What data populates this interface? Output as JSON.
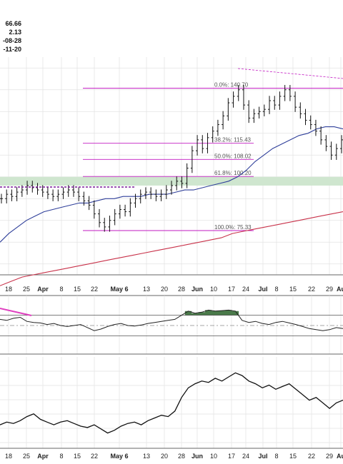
{
  "header": {
    "readouts": [
      "66.66",
      "2.13",
      "-08-28",
      "-11-20"
    ]
  },
  "colors": {
    "price": "#111111",
    "ma_short": "#2f3f9a",
    "ma_long": "#c8324a",
    "fib": "#c21ac2",
    "support_zone": "#cfe6cf",
    "indicator_fill": "#4a7a4a",
    "divergence": "#e040c0",
    "grid": "#e2e2e2"
  },
  "chart_data": [
    {
      "type": "candlestick",
      "name": "price-panel",
      "title": "",
      "xlabel": "",
      "ylabel": "",
      "x_tick_labels": [
        "18",
        "25",
        "Apr",
        "8",
        "15",
        "22",
        "May 6",
        "13",
        "20",
        "28",
        "Jun",
        "10",
        "17",
        "24",
        "Jul",
        "8",
        "15",
        "22",
        "29",
        "Au"
      ],
      "ylim": [
        55,
        155
      ],
      "grid": true,
      "fib_levels": [
        {
          "label": "0.0%: 140.70",
          "value": 140.7
        },
        {
          "label": "38.2%: 115.43",
          "value": 115.43
        },
        {
          "label": "50.0%: 108.02",
          "value": 108.02
        },
        {
          "label": "61.8%: 100.20",
          "value": 100.2
        },
        {
          "label": "100.0%: 75.33",
          "value": 75.33
        }
      ],
      "support_zone": [
        96,
        100
      ],
      "series_close": [
        90,
        92,
        91,
        93,
        94,
        96,
        95,
        94,
        93,
        92,
        91,
        92,
        93,
        94,
        93,
        91,
        89,
        87,
        83,
        79,
        77,
        80,
        83,
        85,
        84,
        88,
        90,
        92,
        93,
        92,
        91,
        92,
        94,
        96,
        98,
        97,
        104,
        112,
        117,
        113,
        118,
        121,
        124,
        128,
        134,
        137,
        140,
        133,
        127,
        129,
        130,
        131,
        135,
        133,
        137,
        140,
        137,
        132,
        129,
        126,
        124,
        121,
        117,
        114,
        110,
        113,
        117
      ],
      "ma_short": [
        70,
        74,
        77,
        80,
        82,
        84,
        85,
        86,
        87,
        88,
        88,
        89,
        90,
        90,
        91,
        91,
        91,
        92,
        92,
        92,
        93,
        94,
        94,
        95,
        96,
        97,
        98,
        100,
        103,
        107,
        110,
        113,
        115,
        117,
        119,
        120,
        122,
        123,
        123,
        122
      ],
      "ma_long": [
        50,
        52,
        54,
        55,
        56,
        57,
        58,
        59,
        60,
        61,
        62,
        63,
        64,
        65,
        66,
        67,
        68,
        69,
        70,
        71,
        72,
        74,
        75,
        76,
        77,
        78,
        79,
        80,
        81,
        82,
        83,
        84
      ]
    },
    {
      "type": "line",
      "name": "momentum-oscillator",
      "title": "",
      "ylim": [
        0,
        100
      ],
      "reference_lines": [
        70,
        50,
        30
      ],
      "values": [
        62,
        60,
        64,
        66,
        58,
        56,
        55,
        52,
        54,
        50,
        48,
        50,
        52,
        46,
        40,
        43,
        48,
        52,
        54,
        50,
        49,
        51,
        54,
        56,
        58,
        60,
        62,
        70,
        78,
        74,
        76,
        80,
        78,
        79,
        80,
        78,
        60,
        56,
        58,
        54,
        52,
        56,
        58,
        55,
        52,
        48,
        44,
        42,
        40,
        42,
        46,
        44
      ]
    },
    {
      "type": "line",
      "name": "lower-indicator",
      "title": "",
      "values": [
        28,
        30,
        29,
        31,
        34,
        36,
        32,
        30,
        28,
        30,
        31,
        29,
        27,
        26,
        28,
        25,
        22,
        24,
        27,
        29,
        30,
        28,
        31,
        33,
        35,
        34,
        38,
        48,
        55,
        58,
        60,
        59,
        62,
        60,
        63,
        66,
        64,
        60,
        58,
        55,
        57,
        54,
        56,
        58,
        54,
        50,
        46,
        48,
        44,
        40,
        44,
        46
      ]
    }
  ]
}
